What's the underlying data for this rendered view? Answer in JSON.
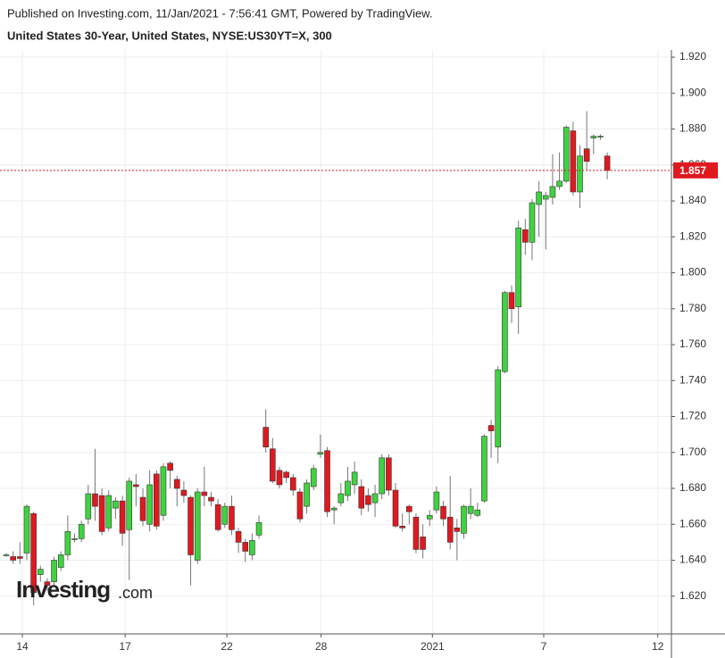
{
  "header": {
    "published": "Published on Investing.com, 11/Jan/2021 - 7:56:41 GMT, Powered by TradingView.",
    "instrument": "United States 30-Year, United States, NYSE:US30YT=X, 300"
  },
  "logo": {
    "brand": "Investing",
    "suffix": ".com"
  },
  "chart_data": {
    "type": "candlestick",
    "up_color": "#3fd33f",
    "down_color": "#e0191f",
    "wick_color": "#777777",
    "border_color": "#333333",
    "grid": true,
    "last_price": 1.857,
    "last_price_color": "#e0191f",
    "open": [
      1.643,
      1.642,
      1.642,
      1.644,
      1.666,
      1.632,
      1.628,
      1.628,
      1.636,
      1.643,
      1.652,
      1.652,
      1.663,
      1.677,
      1.676,
      1.658,
      1.669,
      1.673,
      1.657,
      1.682,
      1.675,
      1.66,
      1.688,
      1.665,
      1.694,
      1.685,
      1.679,
      1.675,
      1.64,
      1.678,
      1.675,
      1.671,
      1.66,
      1.67,
      1.656,
      1.65,
      1.643,
      1.654,
      1.714,
      1.702,
      1.69,
      1.689,
      1.686,
      1.678,
      1.67,
      1.681,
      1.699,
      1.701,
      1.668,
      1.672,
      1.676,
      1.682,
      1.681,
      1.676,
      1.672,
      1.677,
      1.697,
      1.679,
      1.659,
      1.67,
      1.664,
      1.653,
      1.663,
      1.668,
      1.67,
      1.664,
      1.658,
      1.655,
      1.666,
      1.665,
      1.673,
      1.715,
      1.703,
      1.745,
      1.789,
      1.781,
      1.824,
      1.817,
      1.838,
      1.841,
      1.842,
      1.848,
      1.851,
      1.879,
      1.845,
      1.869,
      1.875,
      1.876,
      1.865
    ],
    "high": [
      1.644,
      1.645,
      1.65,
      1.671,
      1.667,
      1.637,
      1.63,
      1.642,
      1.645,
      1.665,
      1.655,
      1.662,
      1.682,
      1.702,
      1.68,
      1.679,
      1.675,
      1.676,
      1.686,
      1.688,
      1.68,
      1.69,
      1.69,
      1.694,
      1.695,
      1.687,
      1.684,
      1.676,
      1.68,
      1.692,
      1.678,
      1.674,
      1.672,
      1.676,
      1.658,
      1.652,
      1.655,
      1.665,
      1.724,
      1.708,
      1.692,
      1.69,
      1.688,
      1.68,
      1.685,
      1.693,
      1.71,
      1.703,
      1.67,
      1.683,
      1.692,
      1.695,
      1.685,
      1.68,
      1.682,
      1.699,
      1.699,
      1.683,
      1.666,
      1.671,
      1.666,
      1.66,
      1.668,
      1.681,
      1.673,
      1.687,
      1.663,
      1.671,
      1.68,
      1.672,
      1.71,
      1.718,
      1.748,
      1.79,
      1.793,
      1.829,
      1.83,
      1.841,
      1.851,
      1.845,
      1.866,
      1.867,
      1.882,
      1.884,
      1.871,
      1.89,
      1.877,
      1.877,
      1.867
    ],
    "low": [
      1.642,
      1.638,
      1.638,
      1.64,
      1.615,
      1.628,
      1.623,
      1.625,
      1.634,
      1.64,
      1.65,
      1.65,
      1.66,
      1.662,
      1.654,
      1.656,
      1.663,
      1.648,
      1.629,
      1.67,
      1.659,
      1.656,
      1.657,
      1.662,
      1.68,
      1.67,
      1.672,
      1.626,
      1.638,
      1.67,
      1.67,
      1.656,
      1.658,
      1.654,
      1.644,
      1.639,
      1.64,
      1.652,
      1.7,
      1.683,
      1.68,
      1.683,
      1.676,
      1.661,
      1.666,
      1.679,
      1.697,
      1.664,
      1.66,
      1.67,
      1.673,
      1.677,
      1.665,
      1.667,
      1.664,
      1.674,
      1.676,
      1.658,
      1.656,
      1.66,
      1.644,
      1.641,
      1.659,
      1.666,
      1.659,
      1.646,
      1.64,
      1.652,
      1.663,
      1.664,
      1.672,
      1.697,
      1.694,
      1.744,
      1.772,
      1.766,
      1.81,
      1.807,
      1.82,
      1.813,
      1.838,
      1.846,
      1.85,
      1.843,
      1.836,
      1.857,
      1.866,
      1.874,
      1.852
    ],
    "close": [
      1.643,
      1.64,
      1.641,
      1.67,
      1.622,
      1.635,
      1.626,
      1.64,
      1.643,
      1.656,
      1.652,
      1.66,
      1.677,
      1.67,
      1.656,
      1.676,
      1.673,
      1.655,
      1.684,
      1.681,
      1.662,
      1.682,
      1.659,
      1.692,
      1.69,
      1.68,
      1.676,
      1.643,
      1.678,
      1.676,
      1.673,
      1.657,
      1.67,
      1.657,
      1.65,
      1.645,
      1.651,
      1.661,
      1.703,
      1.684,
      1.682,
      1.686,
      1.679,
      1.663,
      1.683,
      1.691,
      1.7,
      1.667,
      1.669,
      1.677,
      1.684,
      1.689,
      1.669,
      1.671,
      1.677,
      1.697,
      1.679,
      1.659,
      1.658,
      1.667,
      1.646,
      1.646,
      1.665,
      1.678,
      1.663,
      1.65,
      1.656,
      1.67,
      1.67,
      1.668,
      1.709,
      1.712,
      1.746,
      1.789,
      1.78,
      1.825,
      1.817,
      1.839,
      1.845,
      1.843,
      1.848,
      1.851,
      1.881,
      1.845,
      1.865,
      1.862,
      1.876,
      1.876,
      1.857
    ],
    "xlim": [
      -0.92,
      97.4
    ],
    "xticks": [
      {
        "value": 2.35,
        "label": "14"
      },
      {
        "value": 17.4,
        "label": "17"
      },
      {
        "value": 32.3,
        "label": "22"
      },
      {
        "value": 46.1,
        "label": "28"
      },
      {
        "value": 62.4,
        "label": "2021"
      },
      {
        "value": 78.7,
        "label": "7"
      },
      {
        "value": 95.4,
        "label": "12"
      }
    ],
    "ylim": [
      1.599,
      1.924
    ],
    "yticks": [
      {
        "value": 1.62,
        "label": "1.620"
      },
      {
        "value": 1.64,
        "label": "1.640"
      },
      {
        "value": 1.66,
        "label": "1.660"
      },
      {
        "value": 1.68,
        "label": "1.680"
      },
      {
        "value": 1.7,
        "label": "1.700"
      },
      {
        "value": 1.72,
        "label": "1.720"
      },
      {
        "value": 1.74,
        "label": "1.740"
      },
      {
        "value": 1.76,
        "label": "1.760"
      },
      {
        "value": 1.78,
        "label": "1.780"
      },
      {
        "value": 1.8,
        "label": "1.800"
      },
      {
        "value": 1.82,
        "label": "1.820"
      },
      {
        "value": 1.84,
        "label": "1.840"
      },
      {
        "value": 1.86,
        "label": "1.860"
      },
      {
        "value": 1.88,
        "label": "1.880"
      },
      {
        "value": 1.9,
        "label": "1.900"
      },
      {
        "value": 1.92,
        "label": "1.920"
      }
    ]
  }
}
